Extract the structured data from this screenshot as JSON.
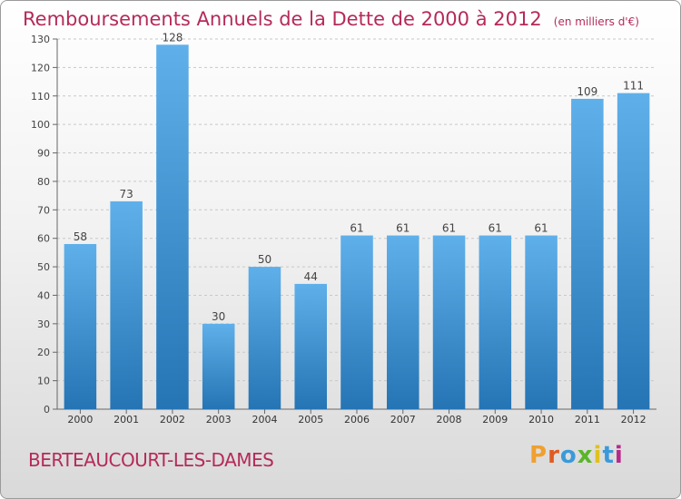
{
  "title": "Remboursements Annuels de la Dette de 2000 à 2012",
  "subtitle": "(en milliers d'€)",
  "commune": "BERTEAUCOURT-LES-DAMES",
  "logo_text": "Proxiti",
  "colors": {
    "title": "#b52a5a",
    "bar_top": "#5fb0ea",
    "bar_bottom": "#2574b4"
  },
  "chart_data": {
    "type": "bar",
    "categories": [
      "2000",
      "2001",
      "2002",
      "2003",
      "2004",
      "2005",
      "2006",
      "2007",
      "2008",
      "2009",
      "2010",
      "2011",
      "2012"
    ],
    "values": [
      58,
      73,
      128,
      30,
      50,
      44,
      61,
      61,
      61,
      61,
      61,
      109,
      111
    ],
    "data_labels": [
      "58",
      "73",
      "128",
      "30",
      "50",
      "44",
      "61",
      "61",
      "61",
      "61",
      "61",
      "109",
      "111"
    ],
    "title": "Remboursements Annuels de la Dette de 2000 à 2012",
    "xlabel": "",
    "ylabel": "",
    "ylim": [
      0,
      130
    ],
    "yticks": [
      "0",
      "10",
      "20",
      "30",
      "40",
      "50",
      "60",
      "70",
      "80",
      "90",
      "100",
      "110",
      "120",
      "130"
    ],
    "grid": true,
    "legend": "none"
  }
}
